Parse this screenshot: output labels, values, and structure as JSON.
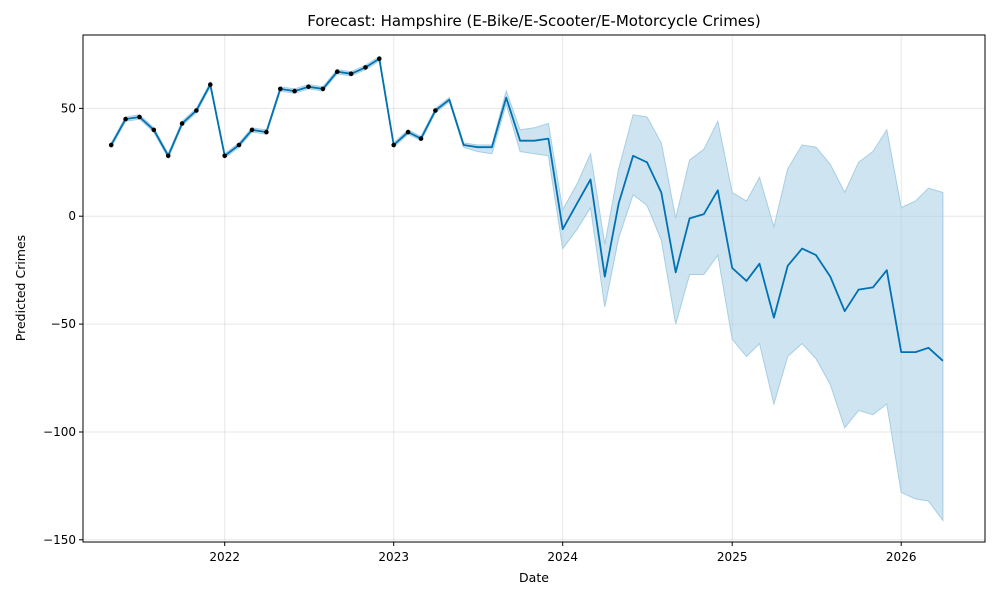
{
  "chart_data": {
    "type": "line",
    "title": "Forecast: Hampshire (E-Bike/E-Scooter/E-Motorcycle Crimes)",
    "xlabel": "Date",
    "ylabel": "Predicted Crimes",
    "xlim": [
      "2021-03-01",
      "2026-07-01"
    ],
    "ylim": [
      -151,
      84
    ],
    "x_ticks": [
      {
        "date": "2022-01-01",
        "label": "2022"
      },
      {
        "date": "2023-01-01",
        "label": "2023"
      },
      {
        "date": "2024-01-01",
        "label": "2024"
      },
      {
        "date": "2025-01-01",
        "label": "2025"
      },
      {
        "date": "2026-01-01",
        "label": "2026"
      }
    ],
    "y_ticks": [
      50,
      0,
      -50,
      -100,
      -150
    ],
    "y_tick_labels": [
      "50",
      "0",
      "−50",
      "−100",
      "−150"
    ],
    "grid": true,
    "colors": {
      "line": "#0072B2",
      "band": "#A6CEE3",
      "points": "#000000"
    },
    "x": [
      "2021-05-01",
      "2021-06-01",
      "2021-07-01",
      "2021-08-01",
      "2021-09-01",
      "2021-10-01",
      "2021-11-01",
      "2021-12-01",
      "2022-01-01",
      "2022-02-01",
      "2022-03-01",
      "2022-04-01",
      "2022-05-01",
      "2022-06-01",
      "2022-07-01",
      "2022-08-01",
      "2022-09-01",
      "2022-10-01",
      "2022-11-01",
      "2022-12-01",
      "2023-01-01",
      "2023-02-01",
      "2023-03-01",
      "2023-04-01",
      "2023-05-01",
      "2023-06-01",
      "2023-07-01",
      "2023-08-01",
      "2023-09-01",
      "2023-10-01",
      "2023-11-01",
      "2023-12-01",
      "2024-01-01",
      "2024-02-01",
      "2024-03-01",
      "2024-04-01",
      "2024-05-01",
      "2024-06-01",
      "2024-07-01",
      "2024-08-01",
      "2024-09-01",
      "2024-10-01",
      "2024-11-01",
      "2024-12-01",
      "2025-01-01",
      "2025-02-01",
      "2025-03-01",
      "2025-04-01",
      "2025-05-01",
      "2025-06-01",
      "2025-07-01",
      "2025-08-01",
      "2025-09-01",
      "2025-10-01",
      "2025-11-01",
      "2025-12-01",
      "2026-01-01",
      "2026-02-01",
      "2026-03-01",
      "2026-04-01"
    ],
    "series": [
      {
        "name": "",
        "role": "forecast",
        "values": [
          33,
          45,
          46,
          40,
          28,
          43,
          49,
          61,
          28,
          33,
          40,
          39,
          59,
          58,
          60,
          59,
          67,
          66,
          69,
          73,
          33,
          39,
          36,
          49,
          54,
          33,
          32,
          32,
          55,
          35,
          35,
          36,
          -6,
          6,
          17,
          -28,
          6,
          28,
          25,
          11,
          -26,
          -1,
          1,
          12,
          -24,
          -30,
          -22,
          -47,
          -23,
          -15,
          -18,
          -28,
          -44,
          -34,
          -33,
          -25,
          -63,
          -63,
          -61,
          -67
        ]
      },
      {
        "name": "",
        "role": "upper",
        "values": [
          34,
          46,
          47,
          41,
          29,
          44,
          50,
          62,
          29,
          34,
          41,
          40,
          60,
          59,
          61,
          60,
          68,
          67,
          70,
          74,
          34,
          40,
          37,
          50,
          55,
          34,
          33,
          33,
          58,
          40,
          41,
          43,
          3,
          15,
          29,
          -13,
          22,
          47,
          46,
          34,
          -1,
          26,
          31,
          44,
          11,
          7,
          18,
          -5,
          22,
          33,
          32,
          24,
          11,
          25,
          30,
          40,
          4,
          7,
          13,
          11
        ]
      },
      {
        "name": "",
        "role": "lower",
        "values": [
          32,
          44,
          45,
          39,
          27,
          42,
          48,
          60,
          27,
          32,
          39,
          38,
          58,
          57,
          59,
          58,
          66,
          65,
          68,
          72,
          32,
          38,
          35,
          48,
          53,
          32,
          30,
          29,
          52,
          30,
          29,
          28,
          -15,
          -6,
          4,
          -42,
          -10,
          10,
          5,
          -11,
          -50,
          -27,
          -27,
          -18,
          -57,
          -65,
          -59,
          -87,
          -65,
          -59,
          -66,
          -78,
          -98,
          -90,
          -92,
          -87,
          -128,
          -131,
          -132,
          -141
        ]
      },
      {
        "name": "",
        "role": "observed_points",
        "x": [
          "2021-05-01",
          "2021-06-01",
          "2021-07-01",
          "2021-08-01",
          "2021-09-01",
          "2021-10-01",
          "2021-11-01",
          "2021-12-01",
          "2022-01-01",
          "2022-02-01",
          "2022-03-01",
          "2022-04-01",
          "2022-05-01",
          "2022-06-01",
          "2022-07-01",
          "2022-08-01",
          "2022-09-01",
          "2022-10-01",
          "2022-11-01",
          "2022-12-01",
          "2023-01-01",
          "2023-02-01",
          "2023-03-01",
          "2023-04-01"
        ],
        "values": [
          33,
          45,
          46,
          40,
          28,
          43,
          49,
          61,
          28,
          33,
          40,
          39,
          59,
          58,
          60,
          59,
          67,
          66,
          69,
          73,
          33,
          39,
          36,
          49
        ]
      }
    ]
  }
}
